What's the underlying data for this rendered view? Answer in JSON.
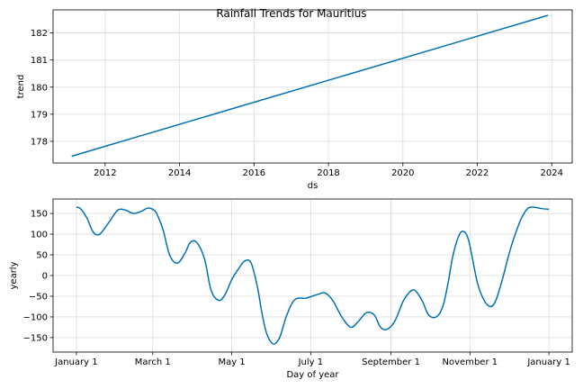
{
  "chart_data": [
    {
      "type": "line",
      "title": "Rainfall Trends for Mauritius",
      "xlabel": "ds",
      "ylabel": "trend",
      "x_ticks": [
        "2012",
        "2014",
        "2016",
        "2018",
        "2020",
        "2022",
        "2024"
      ],
      "y_ticks": [
        "178",
        "179",
        "180",
        "181",
        "182"
      ],
      "xlim": [
        2010.6,
        2024.55
      ],
      "ylim": [
        177.2,
        182.85
      ],
      "grid": true,
      "color": "#0072B2",
      "series": [
        {
          "x": [
            2011.1,
            2023.9
          ],
          "y": [
            177.45,
            182.65
          ]
        }
      ]
    },
    {
      "type": "line",
      "xlabel": "Day of year",
      "ylabel": "yearly",
      "x_ticks": [
        "January 1",
        "March 1",
        "May 1",
        "July 1",
        "September 1",
        "November 1",
        "January 1"
      ],
      "x_tick_days": [
        0,
        59,
        120,
        181,
        243,
        304,
        365
      ],
      "y_ticks": [
        "150",
        "100",
        "50",
        "0",
        "−50",
        "−100",
        "−150"
      ],
      "y_tick_values": [
        150,
        100,
        50,
        0,
        -50,
        -100,
        -150
      ],
      "xlim": [
        -18,
        383
      ],
      "ylim": [
        -185,
        185
      ],
      "grid": true,
      "color": "#0072B2",
      "series": [
        {
          "x": [
            0,
            3,
            8,
            13,
            18,
            25,
            32,
            38,
            44,
            50,
            55,
            59,
            62,
            67,
            72,
            78,
            84,
            88,
            93,
            99,
            104,
            110,
            115,
            120,
            125,
            130,
            135,
            140,
            143,
            147,
            152,
            157,
            162,
            167,
            171,
            177,
            182,
            187,
            192,
            198,
            205,
            212,
            218,
            224,
            230,
            235,
            240,
            246,
            252,
            256,
            261,
            267,
            272,
            278,
            283,
            287,
            291,
            296,
            300,
            303,
            306,
            310,
            315,
            320,
            324,
            329,
            334,
            339,
            344,
            349,
            354,
            359,
            365
          ],
          "y": [
            165,
            162,
            140,
            105,
            100,
            128,
            158,
            158,
            150,
            155,
            163,
            160,
            150,
            110,
            50,
            30,
            55,
            80,
            80,
            40,
            -35,
            -60,
            -45,
            -10,
            15,
            35,
            30,
            -30,
            -85,
            -140,
            -165,
            -150,
            -100,
            -65,
            -55,
            -55,
            -50,
            -45,
            -42,
            -60,
            -100,
            -125,
            -110,
            -90,
            -95,
            -125,
            -130,
            -110,
            -65,
            -45,
            -35,
            -60,
            -95,
            -100,
            -75,
            -20,
            50,
            100,
            105,
            85,
            40,
            -20,
            -60,
            -75,
            -60,
            -10,
            50,
            100,
            140,
            163,
            165,
            162,
            160
          ]
        }
      ]
    }
  ]
}
